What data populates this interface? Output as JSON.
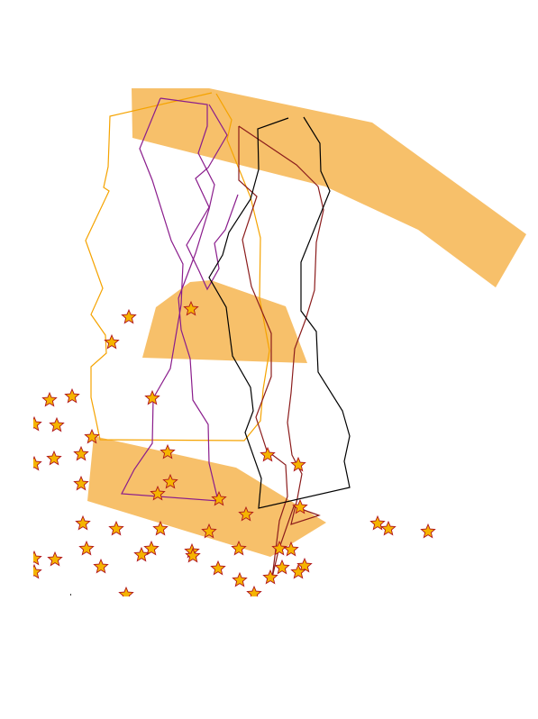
{
  "map": {
    "background_color": "#ffffff",
    "area_fill_color": "#f7c06a",
    "marker_icon": "star-icon",
    "marker_fill_color": "#f5b400",
    "marker_stroke_color": "#b0151c",
    "route_colors": [
      "#f5a300",
      "#8a1c8c",
      "#8b1c1c",
      "#000000"
    ]
  }
}
